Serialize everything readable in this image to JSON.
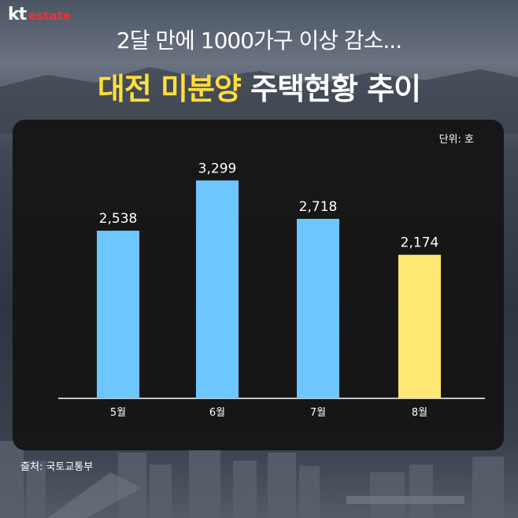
{
  "brand": {
    "logo_kt": "kt",
    "logo_estate": "estate"
  },
  "header": {
    "subtitle": "2달 만에 1000가구 이상 감소...",
    "title_highlight": "대전 미분양",
    "title_rest": "주택현황 추이"
  },
  "unit_label": "단위: 호",
  "source_label": "출처: 국토교통부",
  "colors": {
    "bar_default": "#6ec6ff",
    "bar_highlight": "#ffe873",
    "title_highlight": "#ffde3c"
  },
  "chart_data": {
    "type": "bar",
    "categories": [
      "5월",
      "6월",
      "7월",
      "8월"
    ],
    "values": [
      2538,
      3299,
      2718,
      2174
    ],
    "value_labels": [
      "2,538",
      "3,299",
      "2,718",
      "2,174"
    ],
    "highlight_index": 3,
    "ylim": [
      0,
      3600
    ],
    "title": "대전 미분양 주택현황 추이",
    "ylabel": "단위: 호",
    "xlabel": ""
  }
}
